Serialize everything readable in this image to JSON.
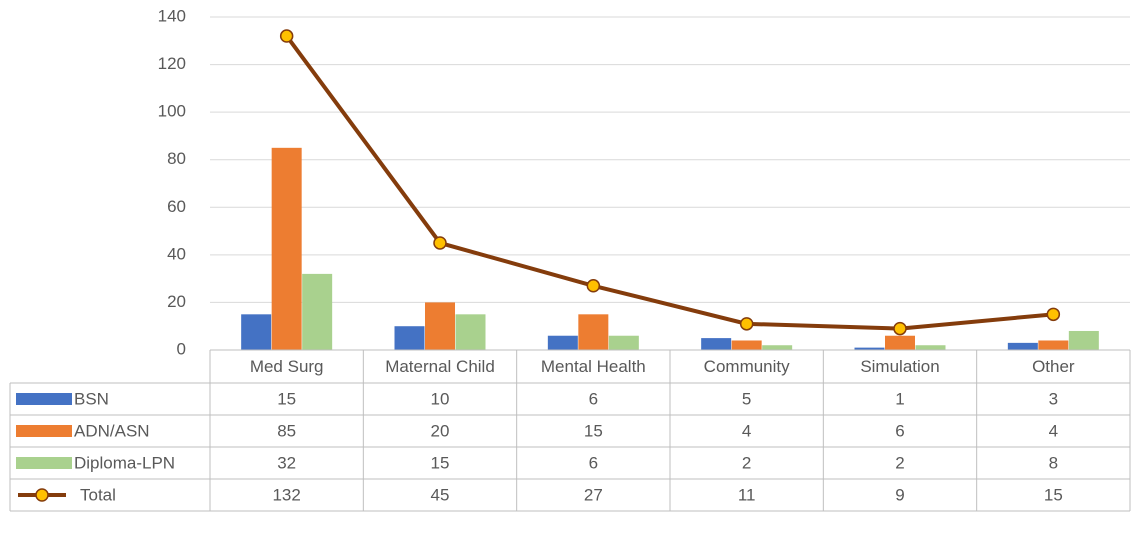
{
  "chart_data": {
    "type": "bar",
    "categories": [
      "Med Surg",
      "Maternal Child",
      "Mental Health",
      "Community",
      "Simulation",
      "Other"
    ],
    "series": [
      {
        "name": "BSN",
        "color": "#4472c4",
        "values": [
          15,
          10,
          6,
          5,
          1,
          3
        ]
      },
      {
        "name": "ADN/ASN",
        "color": "#ed7d31",
        "values": [
          85,
          20,
          15,
          4,
          6,
          4
        ]
      },
      {
        "name": "Diploma-LPN",
        "color": "#a9d18e",
        "values": [
          32,
          15,
          6,
          2,
          2,
          8
        ]
      },
      {
        "name": "Total",
        "type": "line",
        "color": "#843c0c",
        "marker_color": "#ffc000",
        "values": [
          132,
          45,
          27,
          11,
          9,
          15
        ]
      }
    ],
    "ylim": [
      0,
      140
    ],
    "yticks": [
      0,
      20,
      40,
      60,
      80,
      100,
      120,
      140
    ],
    "grid": true,
    "data_table": true
  }
}
